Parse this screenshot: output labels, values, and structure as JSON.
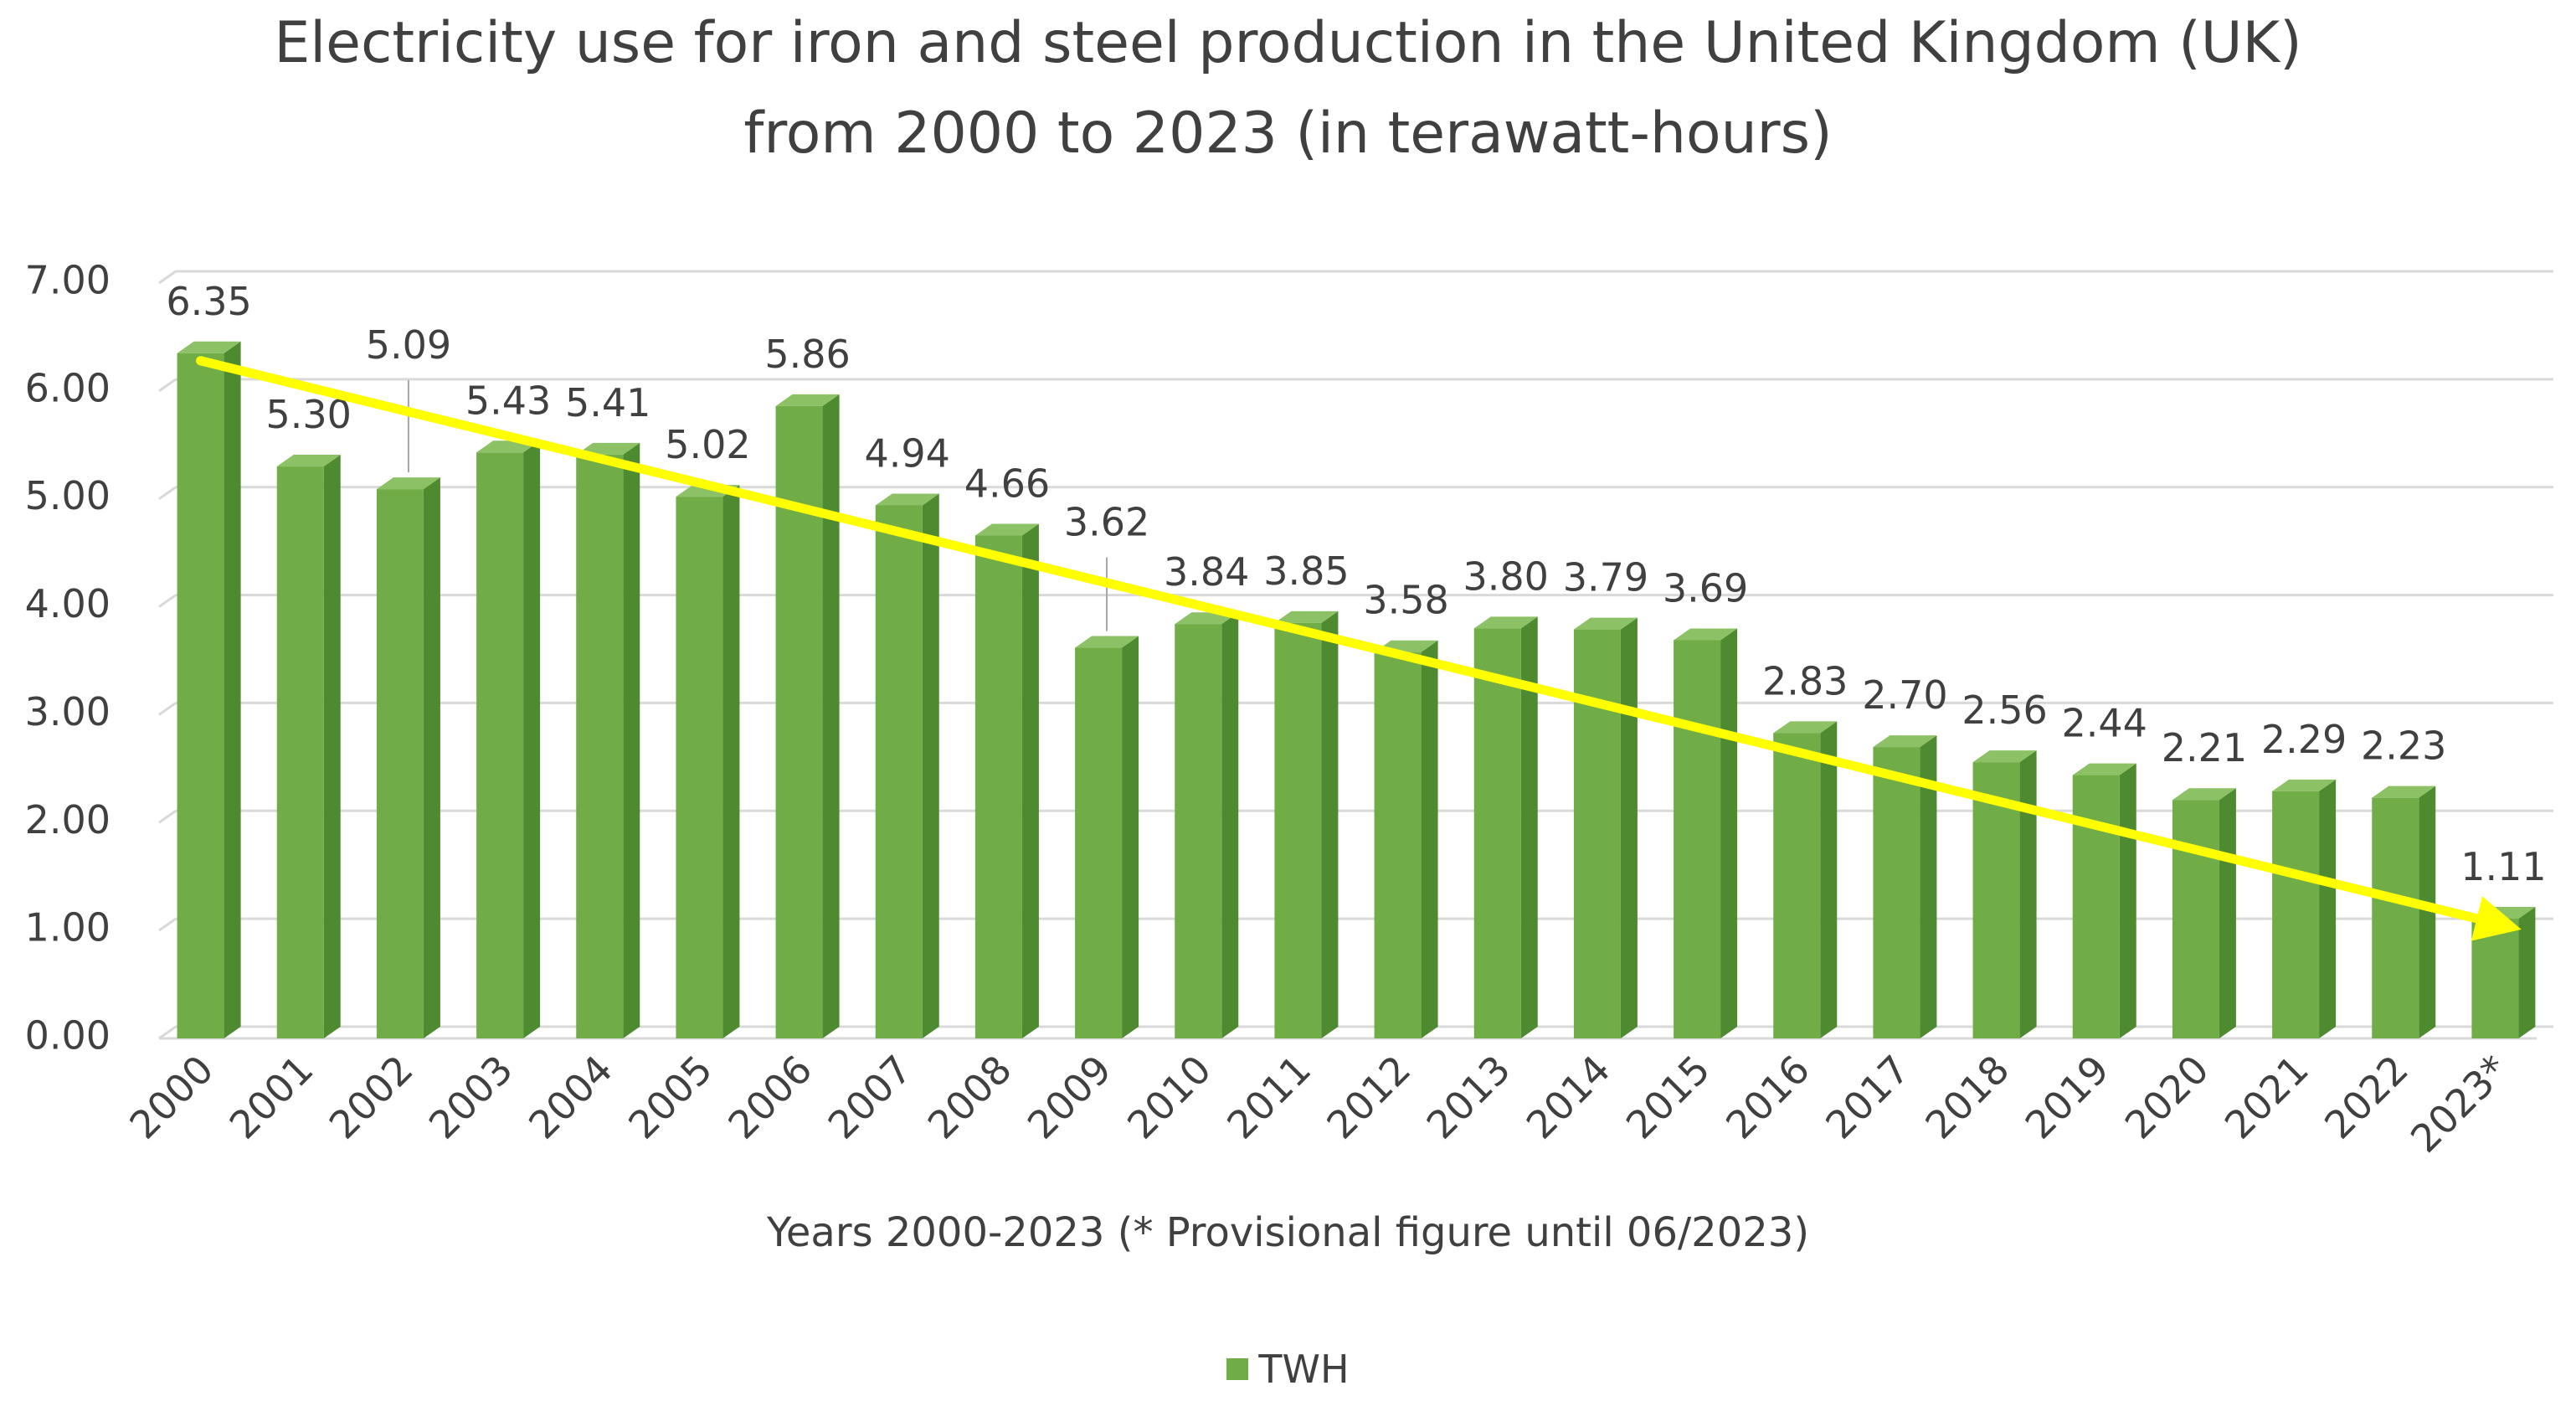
{
  "chart_data": {
    "type": "bar",
    "title_lines": [
      "Electricity use for iron and steel production in the United Kingdom (UK)",
      "from 2000 to 2023 (in terawatt-hours)"
    ],
    "xlabel": "Years 2000-2023 (* Provisional figure until 06/2023)",
    "ylabel": "",
    "ylim": [
      0,
      7
    ],
    "ytick_step": 1,
    "ytick_labels": [
      "0.00",
      "1.00",
      "2.00",
      "3.00",
      "4.00",
      "5.00",
      "6.00",
      "7.00"
    ],
    "grid": true,
    "legend_position": "bottom",
    "categories": [
      "2000",
      "2001",
      "2002",
      "2003",
      "2004",
      "2005",
      "2006",
      "2007",
      "2008",
      "2009",
      "2010",
      "2011",
      "2012",
      "2013",
      "2014",
      "2015",
      "2016",
      "2017",
      "2018",
      "2019",
      "2020",
      "2021",
      "2022",
      "2023*"
    ],
    "series": [
      {
        "name": "TWH",
        "values": [
          6.35,
          5.3,
          5.09,
          5.43,
          5.41,
          5.02,
          5.86,
          4.94,
          4.66,
          3.62,
          3.84,
          3.85,
          3.58,
          3.8,
          3.79,
          3.69,
          2.83,
          2.7,
          2.56,
          2.44,
          2.21,
          2.29,
          2.23,
          1.11
        ]
      }
    ],
    "value_labels": [
      "6.35",
      "5.30",
      "5.09",
      "5.43",
      "5.41",
      "5.02",
      "5.86",
      "4.94",
      "4.66",
      "3.62",
      "3.84",
      "3.85",
      "3.58",
      "3.80",
      "3.79",
      "3.69",
      "2.83",
      "2.70",
      "2.56",
      "2.44",
      "2.21",
      "2.29",
      "2.23",
      "1.11"
    ],
    "trend_arrow": {
      "start": {
        "category": "2000",
        "value": 6.28
      },
      "end": {
        "category": "2023*",
        "value": 1.05
      }
    },
    "colors": {
      "bar_front": "#70AD47",
      "bar_side": "#4E8A30",
      "bar_top": "#8CC265",
      "gridline": "#D9D9D9",
      "trend_arrow": "#FFFF00",
      "text": "#404040"
    }
  }
}
